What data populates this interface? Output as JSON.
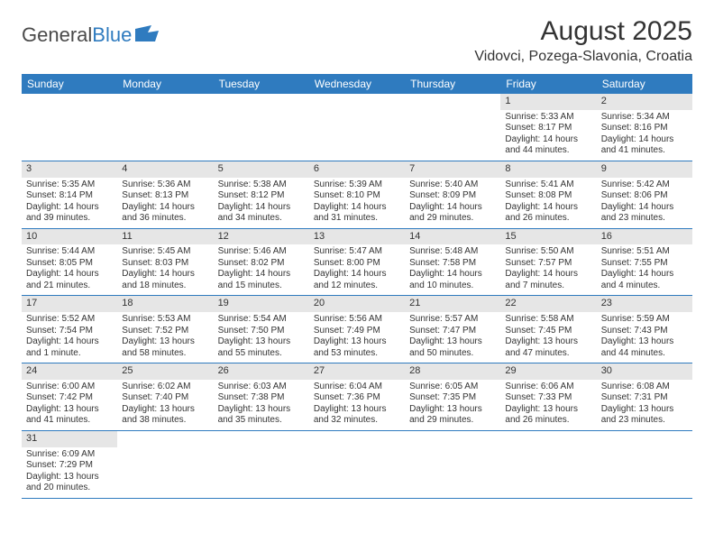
{
  "logo": {
    "text1": "General",
    "text2": "Blue"
  },
  "title": "August 2025",
  "location": "Vidovci, Pozega-Slavonia, Croatia",
  "colors": {
    "header_bg": "#2f7bbf",
    "header_text": "#ffffff",
    "daynum_bg": "#e6e6e6",
    "row_border": "#2f7bbf",
    "page_bg": "#ffffff",
    "text": "#333333"
  },
  "weekdays": [
    "Sunday",
    "Monday",
    "Tuesday",
    "Wednesday",
    "Thursday",
    "Friday",
    "Saturday"
  ],
  "weeks": [
    [
      null,
      null,
      null,
      null,
      null,
      {
        "n": "1",
        "sunrise": "Sunrise: 5:33 AM",
        "sunset": "Sunset: 8:17 PM",
        "daylight": "Daylight: 14 hours and 44 minutes."
      },
      {
        "n": "2",
        "sunrise": "Sunrise: 5:34 AM",
        "sunset": "Sunset: 8:16 PM",
        "daylight": "Daylight: 14 hours and 41 minutes."
      }
    ],
    [
      {
        "n": "3",
        "sunrise": "Sunrise: 5:35 AM",
        "sunset": "Sunset: 8:14 PM",
        "daylight": "Daylight: 14 hours and 39 minutes."
      },
      {
        "n": "4",
        "sunrise": "Sunrise: 5:36 AM",
        "sunset": "Sunset: 8:13 PM",
        "daylight": "Daylight: 14 hours and 36 minutes."
      },
      {
        "n": "5",
        "sunrise": "Sunrise: 5:38 AM",
        "sunset": "Sunset: 8:12 PM",
        "daylight": "Daylight: 14 hours and 34 minutes."
      },
      {
        "n": "6",
        "sunrise": "Sunrise: 5:39 AM",
        "sunset": "Sunset: 8:10 PM",
        "daylight": "Daylight: 14 hours and 31 minutes."
      },
      {
        "n": "7",
        "sunrise": "Sunrise: 5:40 AM",
        "sunset": "Sunset: 8:09 PM",
        "daylight": "Daylight: 14 hours and 29 minutes."
      },
      {
        "n": "8",
        "sunrise": "Sunrise: 5:41 AM",
        "sunset": "Sunset: 8:08 PM",
        "daylight": "Daylight: 14 hours and 26 minutes."
      },
      {
        "n": "9",
        "sunrise": "Sunrise: 5:42 AM",
        "sunset": "Sunset: 8:06 PM",
        "daylight": "Daylight: 14 hours and 23 minutes."
      }
    ],
    [
      {
        "n": "10",
        "sunrise": "Sunrise: 5:44 AM",
        "sunset": "Sunset: 8:05 PM",
        "daylight": "Daylight: 14 hours and 21 minutes."
      },
      {
        "n": "11",
        "sunrise": "Sunrise: 5:45 AM",
        "sunset": "Sunset: 8:03 PM",
        "daylight": "Daylight: 14 hours and 18 minutes."
      },
      {
        "n": "12",
        "sunrise": "Sunrise: 5:46 AM",
        "sunset": "Sunset: 8:02 PM",
        "daylight": "Daylight: 14 hours and 15 minutes."
      },
      {
        "n": "13",
        "sunrise": "Sunrise: 5:47 AM",
        "sunset": "Sunset: 8:00 PM",
        "daylight": "Daylight: 14 hours and 12 minutes."
      },
      {
        "n": "14",
        "sunrise": "Sunrise: 5:48 AM",
        "sunset": "Sunset: 7:58 PM",
        "daylight": "Daylight: 14 hours and 10 minutes."
      },
      {
        "n": "15",
        "sunrise": "Sunrise: 5:50 AM",
        "sunset": "Sunset: 7:57 PM",
        "daylight": "Daylight: 14 hours and 7 minutes."
      },
      {
        "n": "16",
        "sunrise": "Sunrise: 5:51 AM",
        "sunset": "Sunset: 7:55 PM",
        "daylight": "Daylight: 14 hours and 4 minutes."
      }
    ],
    [
      {
        "n": "17",
        "sunrise": "Sunrise: 5:52 AM",
        "sunset": "Sunset: 7:54 PM",
        "daylight": "Daylight: 14 hours and 1 minute."
      },
      {
        "n": "18",
        "sunrise": "Sunrise: 5:53 AM",
        "sunset": "Sunset: 7:52 PM",
        "daylight": "Daylight: 13 hours and 58 minutes."
      },
      {
        "n": "19",
        "sunrise": "Sunrise: 5:54 AM",
        "sunset": "Sunset: 7:50 PM",
        "daylight": "Daylight: 13 hours and 55 minutes."
      },
      {
        "n": "20",
        "sunrise": "Sunrise: 5:56 AM",
        "sunset": "Sunset: 7:49 PM",
        "daylight": "Daylight: 13 hours and 53 minutes."
      },
      {
        "n": "21",
        "sunrise": "Sunrise: 5:57 AM",
        "sunset": "Sunset: 7:47 PM",
        "daylight": "Daylight: 13 hours and 50 minutes."
      },
      {
        "n": "22",
        "sunrise": "Sunrise: 5:58 AM",
        "sunset": "Sunset: 7:45 PM",
        "daylight": "Daylight: 13 hours and 47 minutes."
      },
      {
        "n": "23",
        "sunrise": "Sunrise: 5:59 AM",
        "sunset": "Sunset: 7:43 PM",
        "daylight": "Daylight: 13 hours and 44 minutes."
      }
    ],
    [
      {
        "n": "24",
        "sunrise": "Sunrise: 6:00 AM",
        "sunset": "Sunset: 7:42 PM",
        "daylight": "Daylight: 13 hours and 41 minutes."
      },
      {
        "n": "25",
        "sunrise": "Sunrise: 6:02 AM",
        "sunset": "Sunset: 7:40 PM",
        "daylight": "Daylight: 13 hours and 38 minutes."
      },
      {
        "n": "26",
        "sunrise": "Sunrise: 6:03 AM",
        "sunset": "Sunset: 7:38 PM",
        "daylight": "Daylight: 13 hours and 35 minutes."
      },
      {
        "n": "27",
        "sunrise": "Sunrise: 6:04 AM",
        "sunset": "Sunset: 7:36 PM",
        "daylight": "Daylight: 13 hours and 32 minutes."
      },
      {
        "n": "28",
        "sunrise": "Sunrise: 6:05 AM",
        "sunset": "Sunset: 7:35 PM",
        "daylight": "Daylight: 13 hours and 29 minutes."
      },
      {
        "n": "29",
        "sunrise": "Sunrise: 6:06 AM",
        "sunset": "Sunset: 7:33 PM",
        "daylight": "Daylight: 13 hours and 26 minutes."
      },
      {
        "n": "30",
        "sunrise": "Sunrise: 6:08 AM",
        "sunset": "Sunset: 7:31 PM",
        "daylight": "Daylight: 13 hours and 23 minutes."
      }
    ],
    [
      {
        "n": "31",
        "sunrise": "Sunrise: 6:09 AM",
        "sunset": "Sunset: 7:29 PM",
        "daylight": "Daylight: 13 hours and 20 minutes."
      },
      null,
      null,
      null,
      null,
      null,
      null
    ]
  ]
}
